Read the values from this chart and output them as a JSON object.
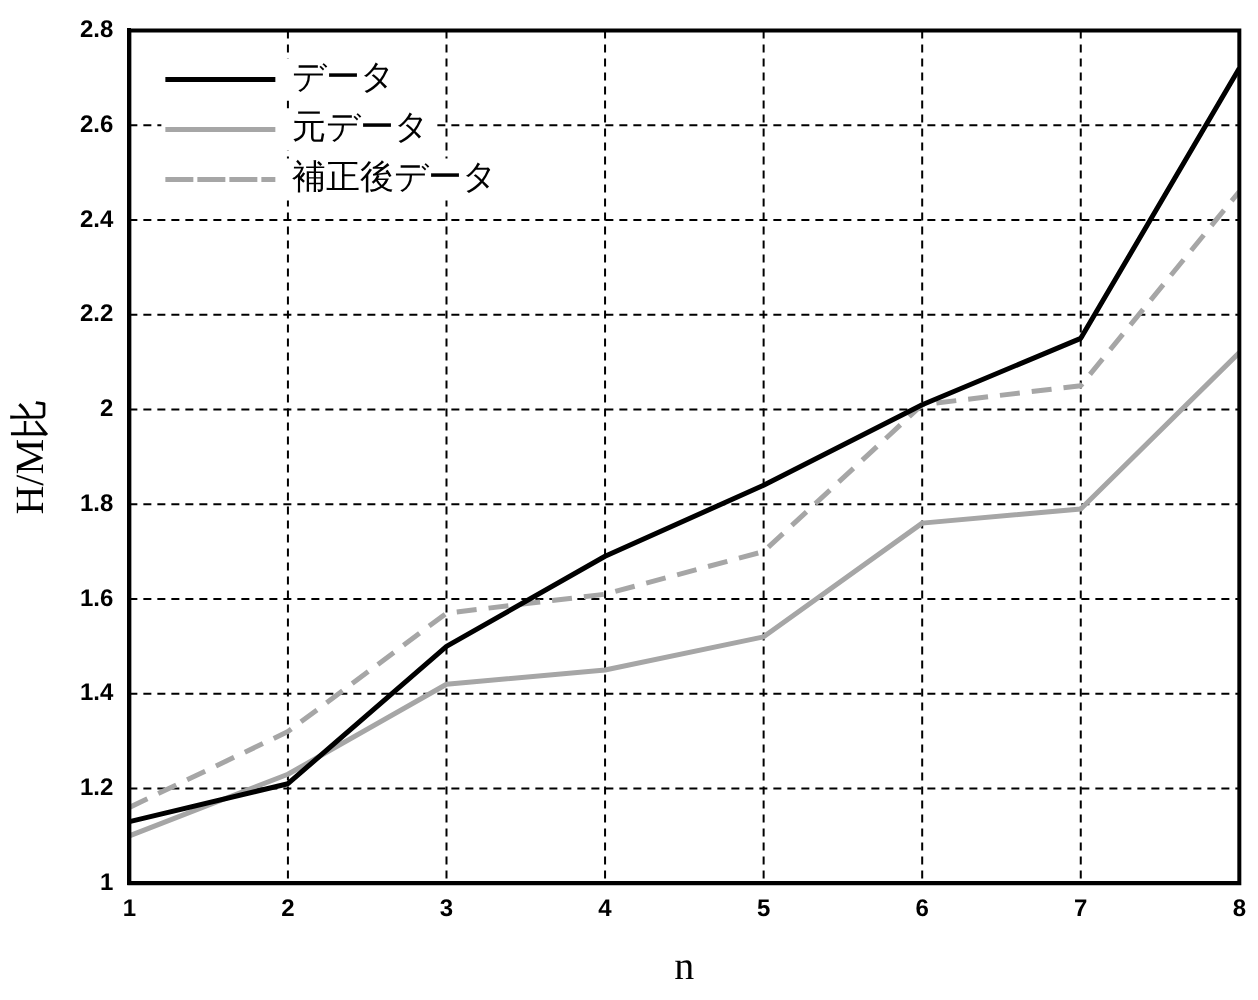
{
  "chart_data": {
    "type": "line",
    "xlabel": "n",
    "ylabel": "H/M比",
    "x": [
      1,
      2,
      3,
      4,
      5,
      6,
      7,
      8
    ],
    "xlim": [
      1,
      8
    ],
    "xticks": [
      1,
      2,
      3,
      4,
      5,
      6,
      7,
      8
    ],
    "ylim": [
      1,
      2.8
    ],
    "yticks": [
      1,
      1.2,
      1.4,
      1.6,
      1.8,
      2,
      2.2,
      2.4,
      2.6,
      2.8
    ],
    "grid": true,
    "legend": "top left",
    "marker": "none",
    "series": [
      {
        "name": "データ",
        "color": "#000000",
        "line_style": "solid",
        "values": [
          1.13,
          1.21,
          1.5,
          1.69,
          1.84,
          2.01,
          2.15,
          2.72
        ]
      },
      {
        "name": "元データ",
        "color": "#a6a6a6",
        "line_style": "solid",
        "values": [
          1.1,
          1.23,
          1.42,
          1.45,
          1.52,
          1.76,
          1.79,
          2.12
        ]
      },
      {
        "name": "補正後データ",
        "color": "#a6a6a6",
        "line_style": "dashed",
        "values": [
          1.16,
          1.32,
          1.57,
          1.61,
          1.7,
          2.01,
          2.05,
          2.46
        ]
      }
    ]
  }
}
